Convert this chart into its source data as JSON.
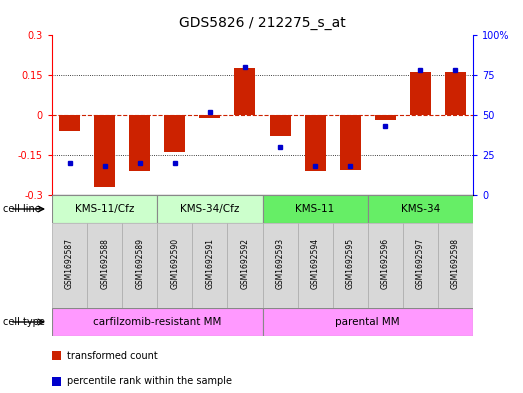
{
  "title": "GDS5826 / 212275_s_at",
  "samples": [
    "GSM1692587",
    "GSM1692588",
    "GSM1692589",
    "GSM1692590",
    "GSM1692591",
    "GSM1692592",
    "GSM1692593",
    "GSM1692594",
    "GSM1692595",
    "GSM1692596",
    "GSM1692597",
    "GSM1692598"
  ],
  "transformed_count": [
    -0.06,
    -0.27,
    -0.21,
    -0.14,
    -0.01,
    0.175,
    -0.08,
    -0.21,
    -0.205,
    -0.02,
    0.16,
    0.16
  ],
  "percentile_rank": [
    20,
    18,
    20,
    20,
    52,
    80,
    30,
    18,
    18,
    43,
    78,
    78
  ],
  "bar_color": "#cc2200",
  "dot_color": "#0000cc",
  "ylim_left": [
    -0.3,
    0.3
  ],
  "ylim_right": [
    0,
    100
  ],
  "yticks_left": [
    -0.3,
    -0.15,
    0,
    0.15,
    0.3
  ],
  "yticks_right": [
    0,
    25,
    50,
    75,
    100
  ],
  "ytick_labels_right": [
    "0",
    "25",
    "50",
    "75",
    "100%"
  ],
  "cell_line_groups": [
    {
      "label": "KMS-11/Cfz",
      "start": 0,
      "end": 2,
      "color": "#ccffcc"
    },
    {
      "label": "KMS-34/Cfz",
      "start": 3,
      "end": 5,
      "color": "#ccffcc"
    },
    {
      "label": "KMS-11",
      "start": 6,
      "end": 8,
      "color": "#66ee66"
    },
    {
      "label": "KMS-34",
      "start": 9,
      "end": 11,
      "color": "#66ee66"
    }
  ],
  "cell_type_groups": [
    {
      "label": "carfilzomib-resistant MM",
      "start": 0,
      "end": 5,
      "color": "#ff99ff"
    },
    {
      "label": "parental MM",
      "start": 6,
      "end": 11,
      "color": "#ff99ff"
    }
  ],
  "legend_items": [
    {
      "label": "transformed count",
      "color": "#cc2200"
    },
    {
      "label": "percentile rank within the sample",
      "color": "#0000cc"
    }
  ],
  "bar_width": 0.6,
  "zero_line_color": "#cc2200",
  "tick_fontsize": 7,
  "title_fontsize": 10,
  "sample_box_color": "#d8d8d8",
  "sample_box_edge": "#aaaaaa"
}
